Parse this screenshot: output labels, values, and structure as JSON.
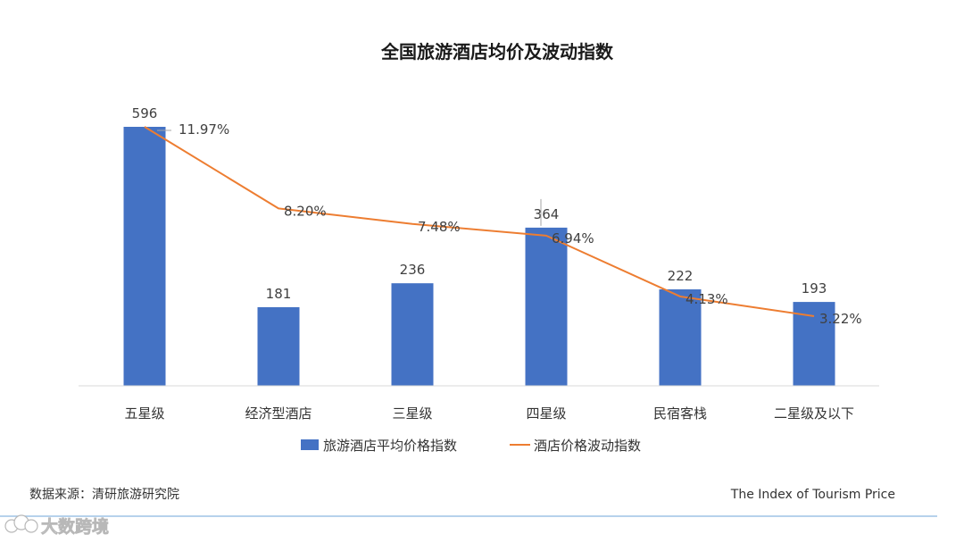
{
  "chart_data": {
    "type": "bar",
    "title": "全国旅游酒店均价及波动指数",
    "categories": [
      "五星级",
      "经济型酒店",
      "三星级",
      "四星级",
      "民宿客栈",
      "二星级及以下"
    ],
    "series": [
      {
        "name": "旅游酒店平均价格指数",
        "type": "bar",
        "values": [
          596,
          181,
          236,
          364,
          222,
          193
        ],
        "color": "#4472C4"
      },
      {
        "name": "酒店价格波动指数",
        "type": "line",
        "values": [
          11.97,
          8.2,
          7.48,
          6.94,
          4.13,
          3.22
        ],
        "labels": [
          "11.97%",
          "8.20%",
          "7.48%",
          "6.94%",
          "4.13%",
          "3.22%"
        ],
        "color": "#ED7D31"
      }
    ],
    "ylim_bar": [
      0,
      596
    ],
    "ylim_line": [
      0,
      11.97
    ],
    "legend": "bottom"
  },
  "source": "数据来源：清研旅游研究院",
  "footer": "The Index of Tourism Price",
  "watermark": "大数跨境",
  "watermark_icon": "cloud-logo-icon"
}
